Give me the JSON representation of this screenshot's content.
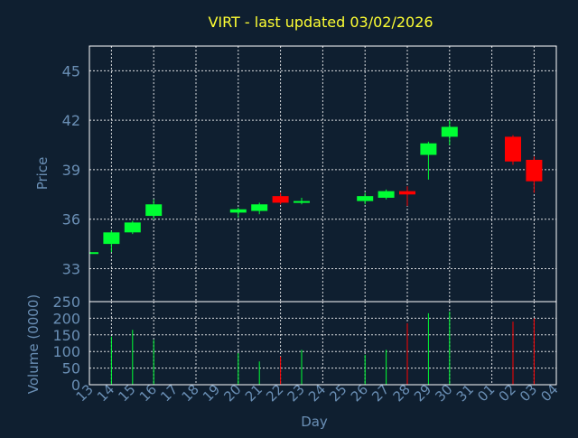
{
  "chart_data": {
    "type": "candlestick",
    "title": "VIRT - last updated 03/02/2026",
    "xlabel": "Day",
    "colors": {
      "background": "#0f1f30",
      "frame": "#ffffff",
      "grid": "#ffffff",
      "title": "#ffff33",
      "axis_text": "#6a8fb5",
      "up": "#00ff33",
      "down": "#ff0000"
    },
    "x_ticks": [
      "13",
      "14",
      "15",
      "16",
      "17",
      "18",
      "19",
      "20",
      "21",
      "22",
      "23",
      "24",
      "25",
      "26",
      "27",
      "28",
      "29",
      "30",
      "31",
      "01",
      "02",
      "03",
      "04"
    ],
    "price_panel": {
      "ylabel": "Price",
      "ylim": [
        31,
        46.5
      ],
      "y_ticks": [
        "33",
        "36",
        "39",
        "42",
        "45"
      ],
      "y_tick_values": [
        33,
        36,
        39,
        42,
        45
      ],
      "grid": true
    },
    "volume_panel": {
      "ylabel": "Volume (0000)",
      "ylim": [
        0,
        250
      ],
      "y_ticks": [
        "0",
        "50",
        "100",
        "150",
        "200",
        "250"
      ],
      "y_tick_values": [
        0,
        50,
        100,
        150,
        200,
        250
      ],
      "grid": true
    },
    "candles": [
      {
        "day": "13",
        "open": 33.95,
        "high": 34.0,
        "low": 33.9,
        "close": 34.0,
        "volume": 0
      },
      {
        "day": "14",
        "open": 34.5,
        "high": 35.3,
        "low": 34.0,
        "close": 35.2,
        "volume": 145
      },
      {
        "day": "15",
        "open": 35.2,
        "high": 35.9,
        "low": 35.1,
        "close": 35.8,
        "volume": 165
      },
      {
        "day": "16",
        "open": 36.2,
        "high": 37.2,
        "low": 36.0,
        "close": 36.9,
        "volume": 135
      },
      {
        "day": "20",
        "open": 36.4,
        "high": 36.7,
        "low": 36.1,
        "close": 36.6,
        "volume": 95
      },
      {
        "day": "21",
        "open": 36.5,
        "high": 37.0,
        "low": 36.3,
        "close": 36.9,
        "volume": 70
      },
      {
        "day": "22",
        "open": 37.4,
        "high": 37.6,
        "low": 36.9,
        "close": 37.0,
        "volume": 85
      },
      {
        "day": "23",
        "open": 37.0,
        "high": 37.3,
        "low": 36.9,
        "close": 37.1,
        "volume": 105
      },
      {
        "day": "26",
        "open": 37.1,
        "high": 37.6,
        "low": 36.9,
        "close": 37.4,
        "volume": 90
      },
      {
        "day": "27",
        "open": 37.3,
        "high": 37.8,
        "low": 37.2,
        "close": 37.7,
        "volume": 105
      },
      {
        "day": "28",
        "open": 37.7,
        "high": 38.0,
        "low": 36.8,
        "close": 37.5,
        "volume": 185
      },
      {
        "day": "29",
        "open": 39.9,
        "high": 40.7,
        "low": 38.4,
        "close": 40.6,
        "volume": 215
      },
      {
        "day": "30",
        "open": 41.0,
        "high": 42.0,
        "low": 40.5,
        "close": 41.6,
        "volume": 220
      },
      {
        "day": "02",
        "open": 41.0,
        "high": 41.1,
        "low": 39.3,
        "close": 39.5,
        "volume": 190
      },
      {
        "day": "03",
        "open": 39.6,
        "high": 39.8,
        "low": 37.6,
        "close": 38.3,
        "volume": 200
      }
    ]
  }
}
